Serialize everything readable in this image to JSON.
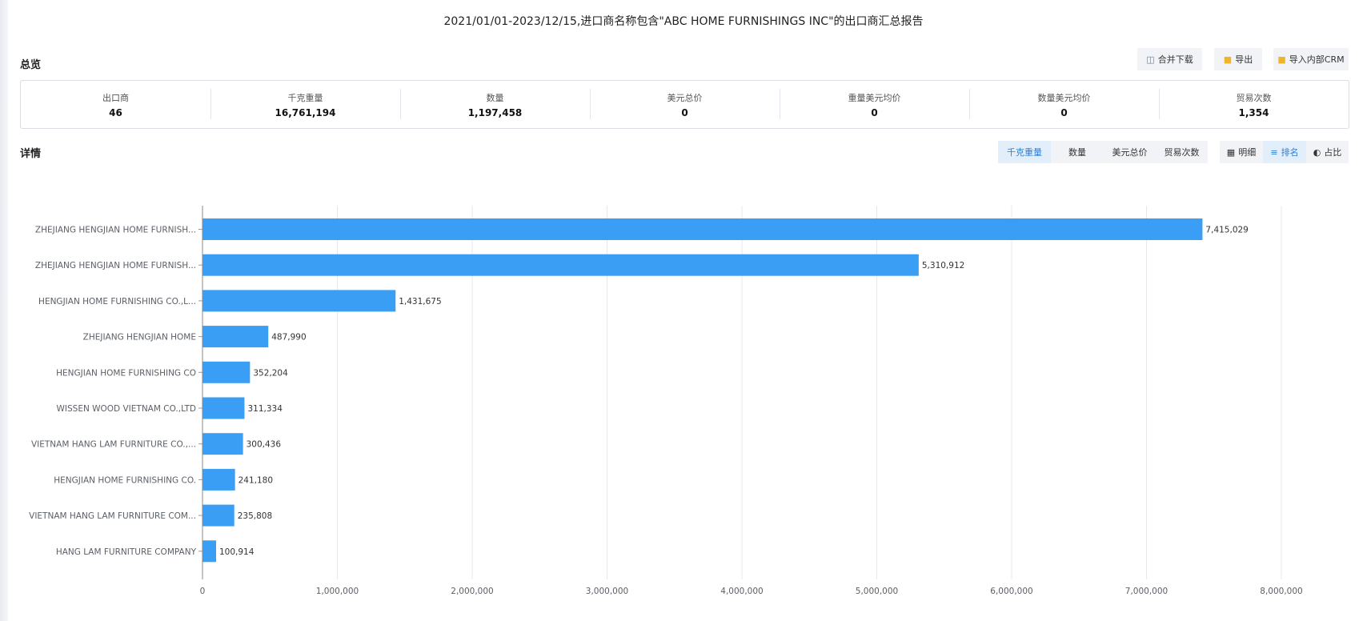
{
  "report": {
    "title": "2021/01/01-2023/12/15,进口商名称包含\"ABC HOME FURNISHINGS INC\"的出口商汇总报告"
  },
  "overview": {
    "heading": "总览",
    "actions": {
      "merge_download": "合并下载",
      "export": "导出",
      "import_crm": "导入内部CRM"
    },
    "stats": [
      {
        "label": "出口商",
        "value": "46"
      },
      {
        "label": "千克重量",
        "value": "16,761,194"
      },
      {
        "label": "数量",
        "value": "1,197,458"
      },
      {
        "label": "美元总价",
        "value": "0"
      },
      {
        "label": "重量美元均价",
        "value": "0"
      },
      {
        "label": "数量美元均价",
        "value": "0"
      },
      {
        "label": "贸易次数",
        "value": "1,354"
      }
    ]
  },
  "details": {
    "heading": "详情",
    "metric_tabs": [
      {
        "label": "千克重量",
        "active": true
      },
      {
        "label": "数量",
        "active": false
      },
      {
        "label": "美元总价",
        "active": false
      },
      {
        "label": "贸易次数",
        "active": false
      }
    ],
    "view_tabs": [
      {
        "label": "明细",
        "icon": "table-icon",
        "active": false
      },
      {
        "label": "排名",
        "icon": "rank-icon",
        "active": true
      },
      {
        "label": "占比",
        "icon": "pie-icon",
        "active": false
      }
    ]
  },
  "colors": {
    "bar": "#3b9ef5",
    "accent": "#2d7fd3",
    "grid": "#e6e8ec"
  },
  "chart_data": {
    "type": "bar",
    "orientation": "horizontal",
    "categories": [
      "ZHEJIANG HENGJIAN HOME FURNISH...",
      "ZHEJIANG HENGJIAN HOME FURNISH...",
      "HENGJIAN HOME FURNISHING CO.,L...",
      "ZHEJIANG HENGJIAN HOME",
      "HENGJIAN HOME FURNISHING CO",
      "WISSEN WOOD VIETNAM CO.,LTD",
      "VIETNAM HANG LAM FURNITURE CO.,...",
      "HENGJIAN HOME FURNISHING CO.",
      "VIETNAM HANG LAM FURNITURE COM...",
      "HANG LAM FURNITURE COMPANY"
    ],
    "values": [
      7415029,
      5310912,
      1431675,
      487990,
      352204,
      311334,
      300436,
      241180,
      235808,
      100914
    ],
    "value_labels": [
      "7,415,029",
      "5,310,912",
      "1,431,675",
      "487,990",
      "352,204",
      "311,334",
      "300,436",
      "241,180",
      "235,808",
      "100,914"
    ],
    "xlim": [
      0,
      8000000
    ],
    "xticks": [
      0,
      1000000,
      2000000,
      3000000,
      4000000,
      5000000,
      6000000,
      7000000,
      8000000
    ],
    "xtick_labels": [
      "0",
      "1,000,000",
      "2,000,000",
      "3,000,000",
      "4,000,000",
      "5,000,000",
      "6,000,000",
      "7,000,000",
      "8,000,000"
    ],
    "grid": true
  }
}
